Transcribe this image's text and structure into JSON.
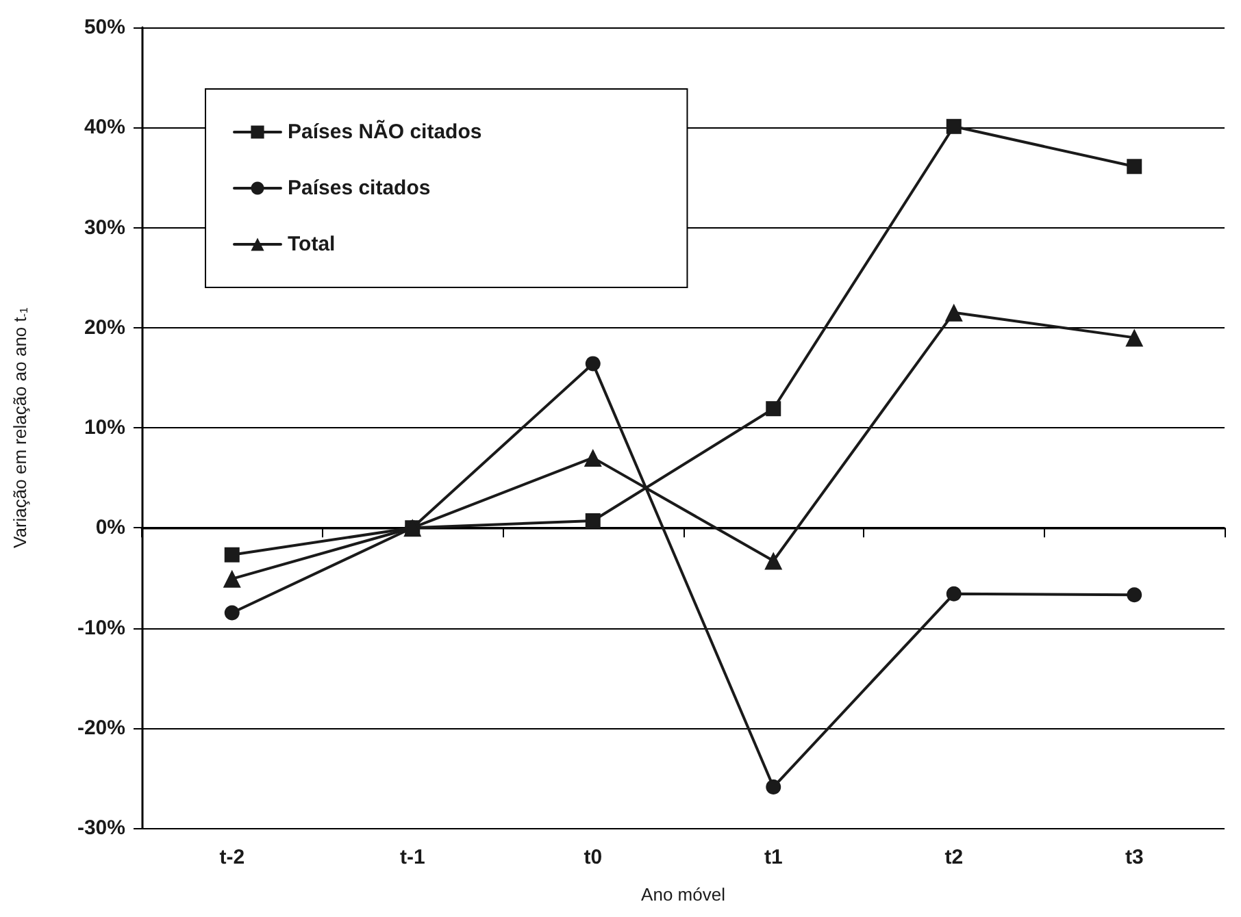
{
  "chart_data": {
    "type": "line",
    "xlabel": "Ano móvel",
    "ylabel": "Variação em relação ao ano t$_{-1}$",
    "categories": [
      "t-2",
      "t-1",
      "t0",
      "t1",
      "t2",
      "t3"
    ],
    "series": [
      {
        "name": "Países NÃO citados",
        "color": "#1a1a1a",
        "marker": "square",
        "values": [
          -2.7,
          0,
          0.7,
          11.9,
          40.1,
          36.1
        ]
      },
      {
        "name": "Países citados",
        "color": "#1a1a1a",
        "marker": "circle",
        "values": [
          -8.5,
          0,
          16.4,
          -25.9,
          -6.6,
          -6.7
        ]
      },
      {
        "name": "Total",
        "color": "#1a1a1a",
        "marker": "triangle",
        "values": [
          -5.1,
          0,
          7.0,
          -3.3,
          21.5,
          19.0
        ]
      }
    ],
    "ylim": [
      -30,
      50
    ],
    "yticks": [
      {
        "value": -30,
        "label": "-30%"
      },
      {
        "value": -20,
        "label": "-20%"
      },
      {
        "value": -10,
        "label": "-10%"
      },
      {
        "value": 0,
        "label": "0%"
      },
      {
        "value": 10,
        "label": "10%"
      },
      {
        "value": 20,
        "label": "20%"
      },
      {
        "value": 30,
        "label": "30%"
      },
      {
        "value": 40,
        "label": "40%"
      },
      {
        "value": 50,
        "label": "50%"
      }
    ],
    "grid": "y",
    "legend": "top left",
    "line_style": "solid"
  }
}
